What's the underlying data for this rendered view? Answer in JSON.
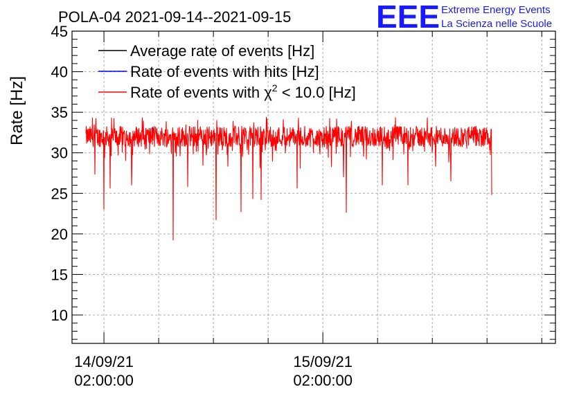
{
  "chart_data": {
    "type": "line",
    "title": "POLA-04 2021-09-14--2021-09-15",
    "xlabel": "",
    "ylabel": "Rate [Hz]",
    "ylim": [
      6.5,
      45
    ],
    "y_ticks": [
      10,
      15,
      20,
      25,
      30,
      35,
      40,
      45
    ],
    "x_domain_hours": [
      -3.5,
      49.5
    ],
    "x_ticks": [
      {
        "hours": 0,
        "date": "14/09/21",
        "time": "02:00:00"
      },
      {
        "hours": 24,
        "date": "15/09/21",
        "time": "02:00:00"
      }
    ],
    "x_minor_step_hours": 6,
    "grid": true,
    "legend_position": "top-left",
    "series": [
      {
        "name": "Average rate of events [Hz]",
        "color": "#000000",
        "visible_in_plot": false
      },
      {
        "name": "Rate of events with hits [Hz]",
        "color": "#0000ff",
        "visible_in_plot": false
      },
      {
        "name": "Rate of events with χ² < 10.0 [Hz]",
        "color": "#ff0000",
        "visible_in_plot": true,
        "x_start_hours": -2.0,
        "x_end_hours": 42.5,
        "baseline": 32.0,
        "dips": [
          {
            "hours": -1.0,
            "value": 27.3
          },
          {
            "hours": 0.0,
            "value": 23.0
          },
          {
            "hours": 0.7,
            "value": 25.6
          },
          {
            "hours": 3.0,
            "value": 26.0
          },
          {
            "hours": 7.6,
            "value": 19.2
          },
          {
            "hours": 9.2,
            "value": 25.8
          },
          {
            "hours": 12.3,
            "value": 21.7
          },
          {
            "hours": 15.0,
            "value": 22.7
          },
          {
            "hours": 16.3,
            "value": 24.3
          },
          {
            "hours": 17.2,
            "value": 24.2
          },
          {
            "hours": 21.2,
            "value": 25.6
          },
          {
            "hours": 26.3,
            "value": 27.0
          },
          {
            "hours": 26.6,
            "value": 22.6
          },
          {
            "hours": 30.5,
            "value": 26.0
          },
          {
            "hours": 33.3,
            "value": 26.0
          },
          {
            "hours": 38.0,
            "value": 26.5
          },
          {
            "hours": 42.5,
            "value": 24.8
          }
        ]
      }
    ]
  },
  "legend": {
    "items": [
      {
        "label": "Average rate of events [Hz]",
        "color": "#000000"
      },
      {
        "label_prefix": "Rate of events with hits [Hz]",
        "color": "#0000ff"
      },
      {
        "label_prefix": "Rate of events with ",
        "chi": "χ",
        "sup": "2",
        "label_suffix": " < 10.0 [Hz]",
        "color": "#ff0000"
      }
    ]
  },
  "logo": {
    "mark": "EEE",
    "line1": "Extreme Energy Events",
    "line2": "La Scienza nelle Scuole"
  }
}
